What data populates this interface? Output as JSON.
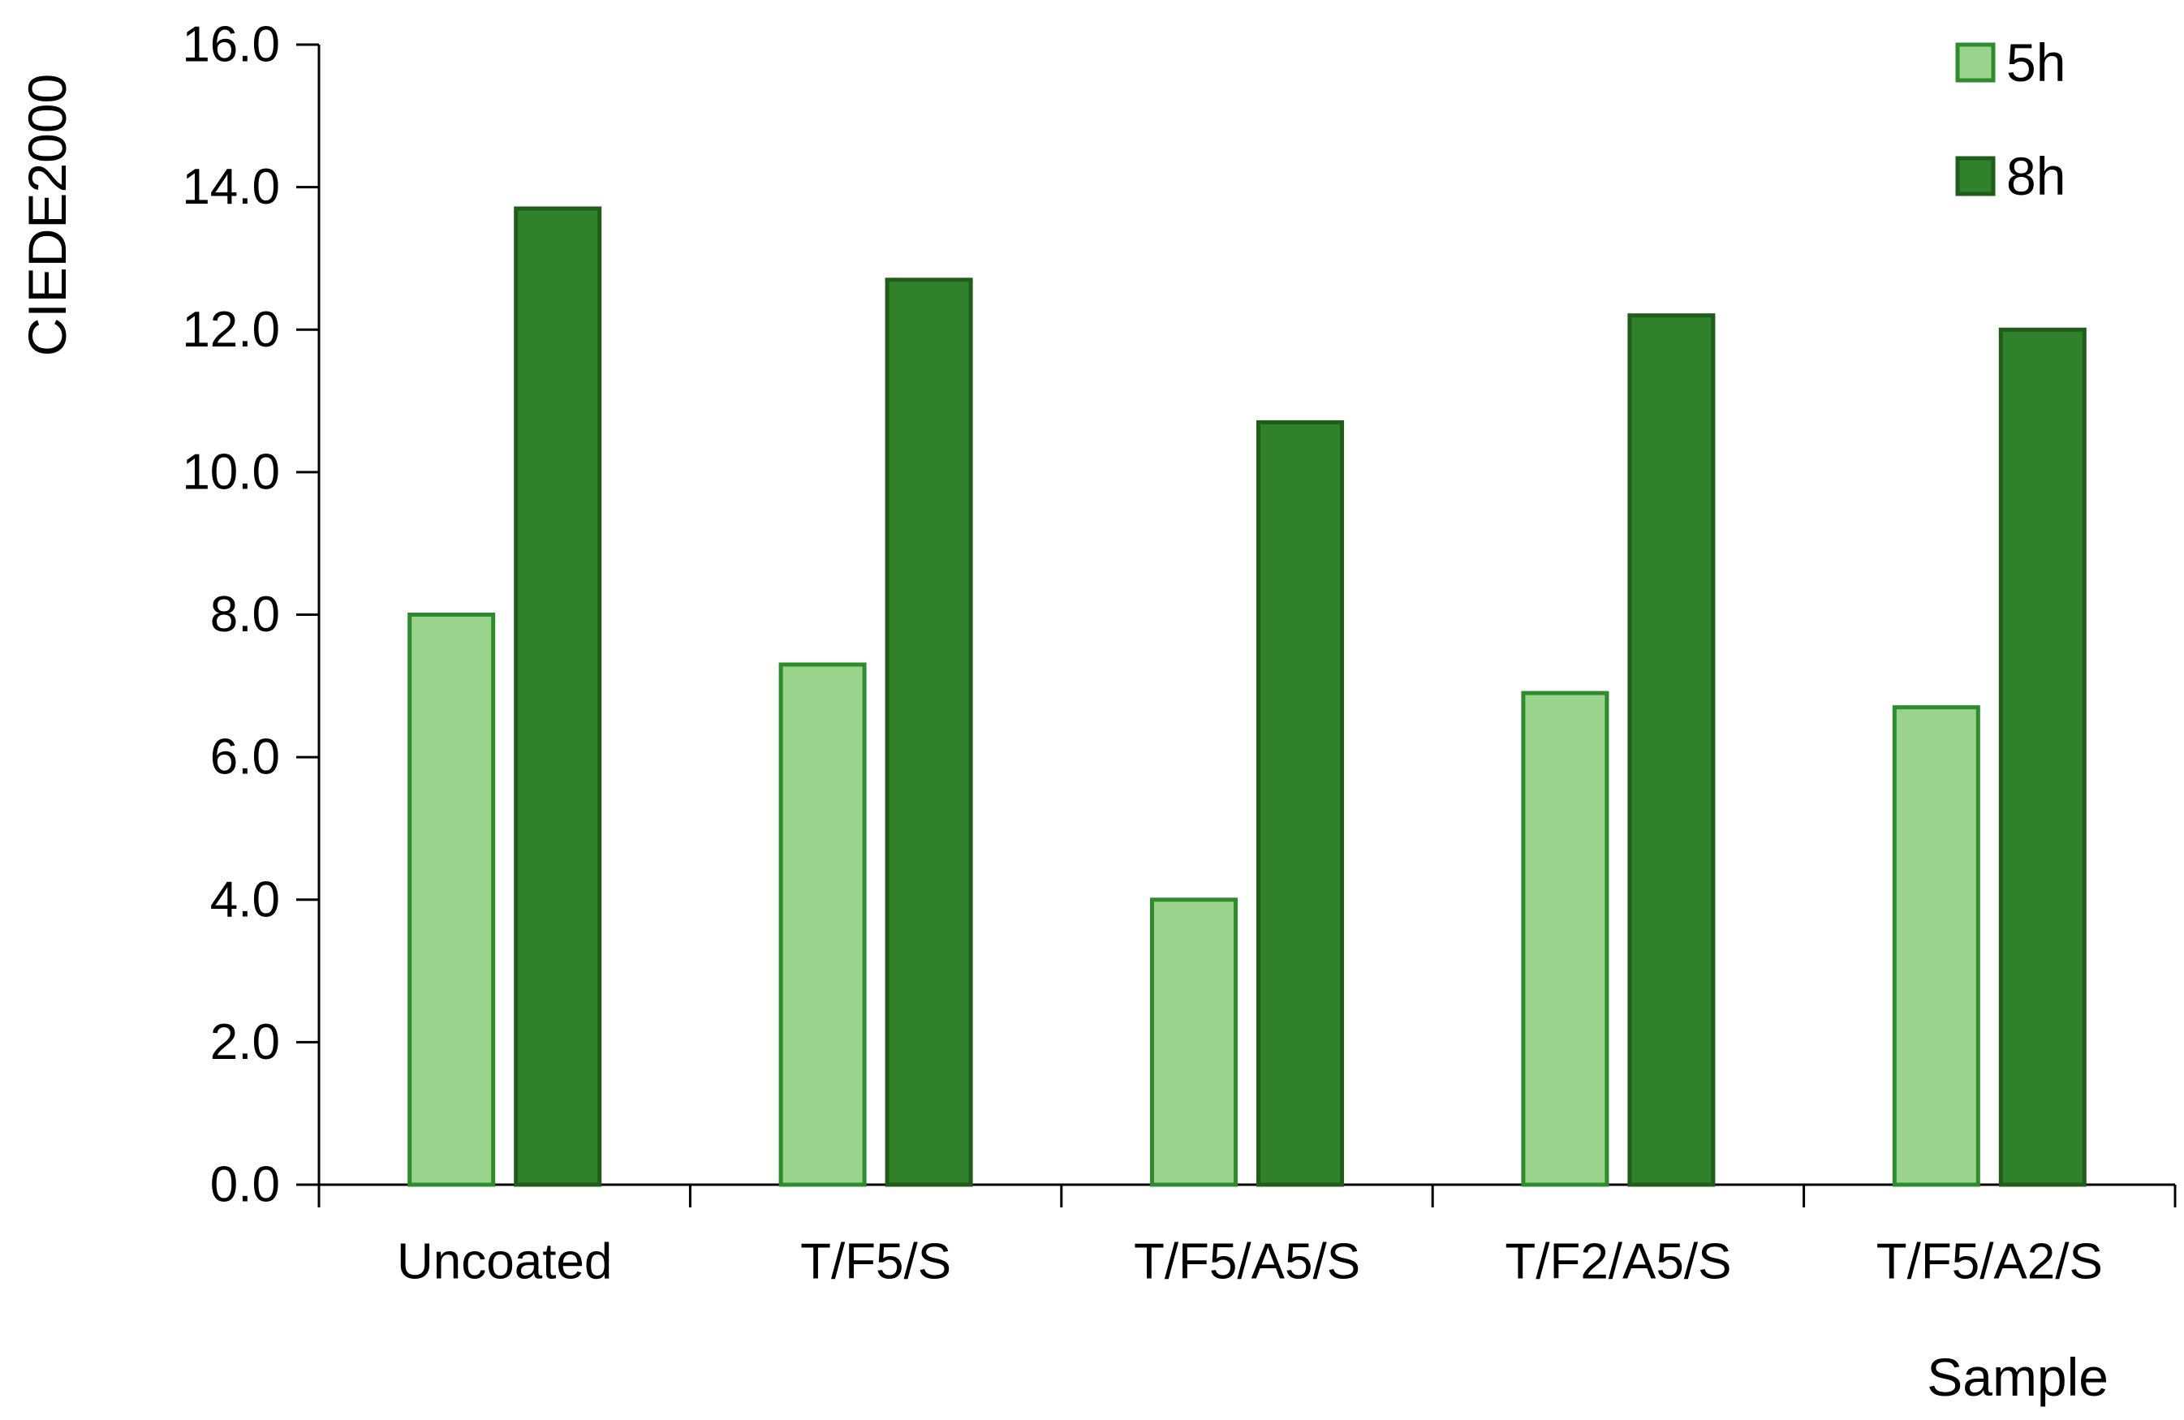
{
  "chart_data": {
    "type": "bar",
    "title": "",
    "xlabel": "Sample",
    "ylabel": "CIEDE2000",
    "ylim": [
      0,
      16
    ],
    "yticks": [
      "0.0",
      "2.0",
      "4.0",
      "6.0",
      "8.0",
      "10.0",
      "12.0",
      "14.0",
      "16.0"
    ],
    "categories": [
      "Uncoated",
      "T/F5/S",
      "T/F5/A5/S",
      "T/F2/A5/S",
      "T/F5/A2/S"
    ],
    "series": [
      {
        "name": "5h",
        "values": [
          8.0,
          7.3,
          4.0,
          6.9,
          6.7
        ],
        "fill": "#9AD48C",
        "stroke": "#2E8B2E"
      },
      {
        "name": "8h",
        "values": [
          13.7,
          12.7,
          10.7,
          12.2,
          12.0
        ],
        "fill": "#31802B",
        "stroke": "#1E5E1A"
      }
    ],
    "grid": false,
    "legend_position": "top-right"
  }
}
